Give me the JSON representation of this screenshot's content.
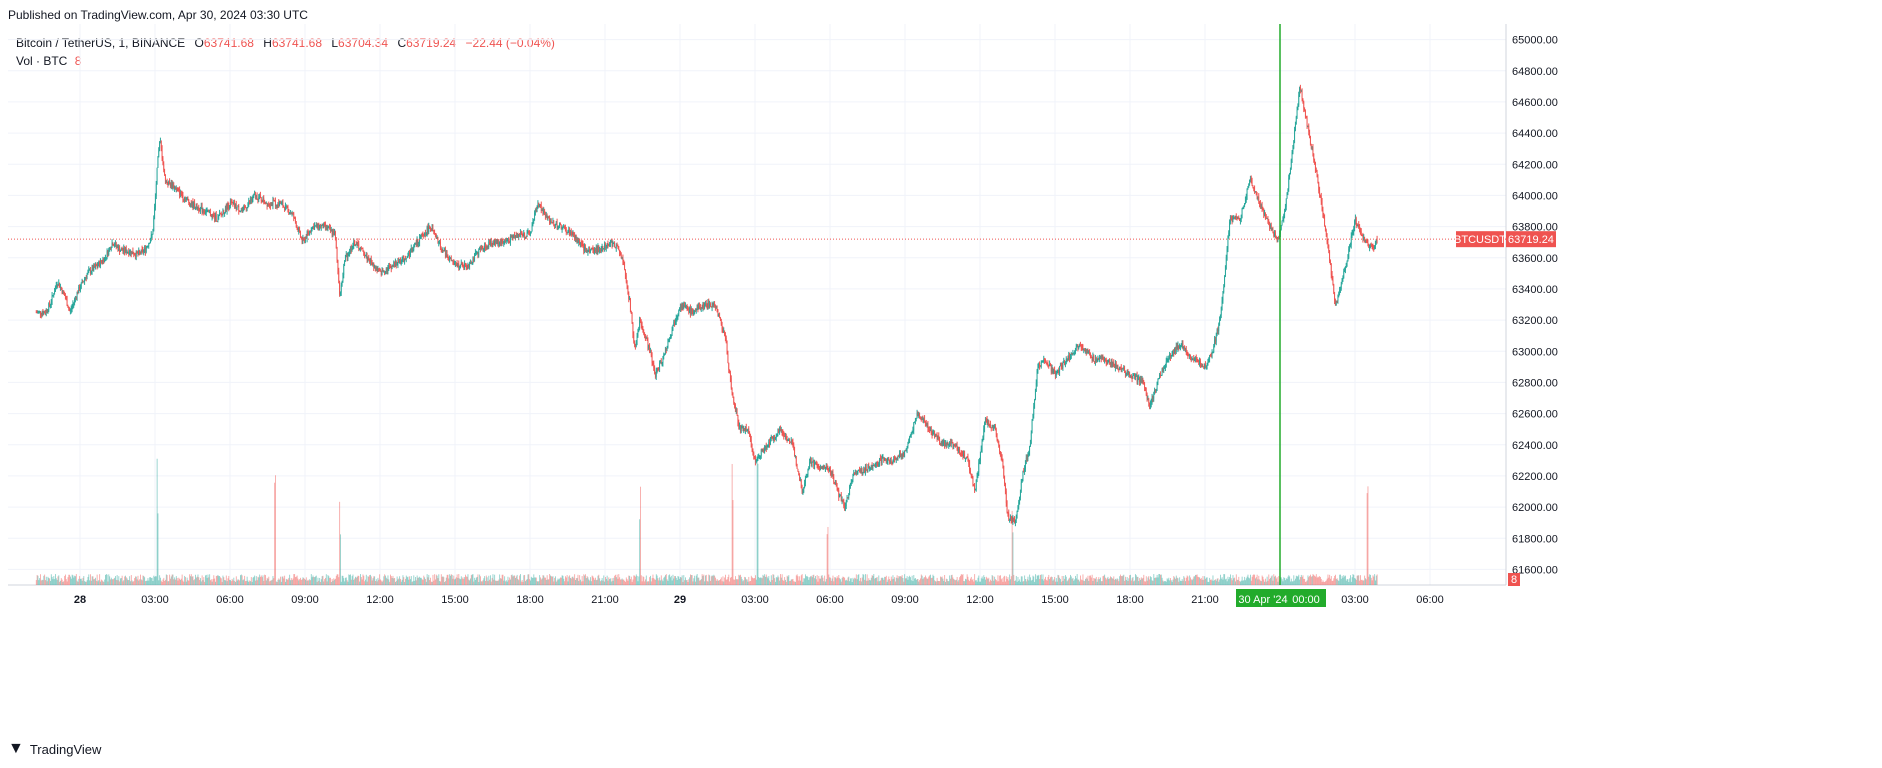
{
  "published": "Published on TradingView.com, Apr 30, 2024 03:30 UTC",
  "legend": {
    "symbol": "Bitcoin / TetherUS, 1, BINANCE",
    "open_label": "O",
    "open": "63741.68",
    "high_label": "H",
    "high": "63741.68",
    "low_label": "L",
    "low": "63704.34",
    "close_label": "C",
    "close": "63719.24",
    "change": "−22.44 (−0.04%)",
    "volume_label": "Vol · BTC",
    "volume_value": "8"
  },
  "price_tag": {
    "ticker": "BTCUSDT",
    "price": "63719.24"
  },
  "volume_tag": "8",
  "crosshair_date": {
    "date": "30 Apr '24",
    "time": "00:00"
  },
  "footer": {
    "brand": "TradingView"
  },
  "colors": {
    "up": "#26a69a",
    "down": "#ef5350",
    "crosshair": "#22ab2b",
    "grid": "#f0f3fa",
    "text": "#131722"
  },
  "chart_data": {
    "type": "candlestick",
    "x_tick_labels": [
      "28",
      "03:00",
      "06:00",
      "09:00",
      "12:00",
      "15:00",
      "18:00",
      "21:00",
      "29",
      "03:00",
      "06:00",
      "09:00",
      "12:00",
      "15:00",
      "18:00",
      "21:00",
      "00:00",
      "03:00",
      "06:00"
    ],
    "y_tick_labels": [
      "61600.00",
      "61800.00",
      "62000.00",
      "62200.00",
      "62400.00",
      "62600.00",
      "62800.00",
      "63000.00",
      "63200.00",
      "63400.00",
      "63600.00",
      "63800.00",
      "64000.00",
      "64200.00",
      "64400.00",
      "64600.00",
      "64800.00",
      "65000.00"
    ],
    "ylim": [
      61500,
      65100
    ],
    "last_price": 63719.24,
    "price_path_hours_from_28_00": [
      [
        -1.75,
        63250
      ],
      [
        -1.4,
        63250
      ],
      [
        -1.2,
        63300
      ],
      [
        -0.9,
        63450
      ],
      [
        -0.6,
        63350
      ],
      [
        -0.4,
        63250
      ],
      [
        -0.1,
        63380
      ],
      [
        0.3,
        63500
      ],
      [
        0.7,
        63550
      ],
      [
        1.0,
        63600
      ],
      [
        1.3,
        63700
      ],
      [
        1.6,
        63650
      ],
      [
        2.0,
        63640
      ],
      [
        2.3,
        63620
      ],
      [
        2.6,
        63650
      ],
      [
        2.9,
        63750
      ],
      [
        3.0,
        63950
      ],
      [
        3.1,
        64200
      ],
      [
        3.2,
        64360
      ],
      [
        3.4,
        64100
      ],
      [
        3.8,
        64050
      ],
      [
        4.4,
        63950
      ],
      [
        5.0,
        63900
      ],
      [
        5.5,
        63850
      ],
      [
        6.0,
        63950
      ],
      [
        6.5,
        63900
      ],
      [
        7.0,
        64000
      ],
      [
        7.5,
        63950
      ],
      [
        8.0,
        63950
      ],
      [
        8.5,
        63880
      ],
      [
        8.9,
        63700
      ],
      [
        9.3,
        63800
      ],
      [
        9.8,
        63800
      ],
      [
        10.2,
        63750
      ],
      [
        10.4,
        63350
      ],
      [
        10.6,
        63600
      ],
      [
        11.0,
        63700
      ],
      [
        11.5,
        63600
      ],
      [
        12.0,
        63500
      ],
      [
        12.5,
        63550
      ],
      [
        13.0,
        63600
      ],
      [
        13.5,
        63700
      ],
      [
        14.0,
        63800
      ],
      [
        14.5,
        63650
      ],
      [
        15.0,
        63550
      ],
      [
        15.5,
        63550
      ],
      [
        16.0,
        63650
      ],
      [
        16.5,
        63700
      ],
      [
        17.0,
        63700
      ],
      [
        17.5,
        63750
      ],
      [
        18.0,
        63750
      ],
      [
        18.3,
        63950
      ],
      [
        18.7,
        63850
      ],
      [
        19.2,
        63800
      ],
      [
        19.7,
        63750
      ],
      [
        20.2,
        63650
      ],
      [
        20.7,
        63650
      ],
      [
        21.2,
        63700
      ],
      [
        21.6,
        63650
      ],
      [
        21.8,
        63500
      ],
      [
        22.0,
        63300
      ],
      [
        22.2,
        63000
      ],
      [
        22.4,
        63200
      ],
      [
        22.8,
        63000
      ],
      [
        23.0,
        62850
      ],
      [
        23.3,
        62950
      ],
      [
        23.7,
        63150
      ],
      [
        24.0,
        63300
      ],
      [
        24.5,
        63250
      ],
      [
        25.0,
        63300
      ],
      [
        25.4,
        63300
      ],
      [
        25.8,
        63100
      ],
      [
        26.1,
        62700
      ],
      [
        26.4,
        62500
      ],
      [
        26.7,
        62500
      ],
      [
        27.0,
        62300
      ],
      [
        27.5,
        62400
      ],
      [
        28.0,
        62500
      ],
      [
        28.5,
        62400
      ],
      [
        28.9,
        62100
      ],
      [
        29.2,
        62300
      ],
      [
        29.6,
        62250
      ],
      [
        30.0,
        62250
      ],
      [
        30.3,
        62100
      ],
      [
        30.6,
        62000
      ],
      [
        30.9,
        62200
      ],
      [
        31.5,
        62250
      ],
      [
        32.0,
        62300
      ],
      [
        32.5,
        62300
      ],
      [
        33.0,
        62350
      ],
      [
        33.5,
        62600
      ],
      [
        34.0,
        62500
      ],
      [
        34.5,
        62400
      ],
      [
        35.0,
        62400
      ],
      [
        35.5,
        62300
      ],
      [
        35.8,
        62100
      ],
      [
        36.2,
        62550
      ],
      [
        36.6,
        62500
      ],
      [
        36.9,
        62300
      ],
      [
        37.1,
        61950
      ],
      [
        37.4,
        61900
      ],
      [
        37.7,
        62200
      ],
      [
        38.0,
        62400
      ],
      [
        38.3,
        62900
      ],
      [
        38.6,
        62950
      ],
      [
        39.0,
        62850
      ],
      [
        39.5,
        62950
      ],
      [
        40.0,
        63050
      ],
      [
        40.5,
        62950
      ],
      [
        41.0,
        62950
      ],
      [
        41.5,
        62900
      ],
      [
        42.0,
        62850
      ],
      [
        42.5,
        62800
      ],
      [
        42.8,
        62650
      ],
      [
        43.1,
        62800
      ],
      [
        43.5,
        62950
      ],
      [
        44.0,
        63050
      ],
      [
        44.5,
        62950
      ],
      [
        45.0,
        62900
      ],
      [
        45.3,
        63000
      ],
      [
        45.6,
        63200
      ],
      [
        45.8,
        63500
      ],
      [
        46.0,
        63850
      ],
      [
        46.4,
        63850
      ],
      [
        46.8,
        64100
      ],
      [
        47.2,
        63950
      ],
      [
        47.6,
        63800
      ],
      [
        47.9,
        63700
      ],
      [
        48.2,
        63900
      ],
      [
        48.5,
        64300
      ],
      [
        48.8,
        64700
      ],
      [
        49.1,
        64450
      ],
      [
        49.5,
        64100
      ],
      [
        49.9,
        63700
      ],
      [
        50.2,
        63300
      ],
      [
        50.4,
        63400
      ],
      [
        50.7,
        63600
      ],
      [
        51.0,
        63850
      ],
      [
        51.4,
        63700
      ],
      [
        51.7,
        63650
      ],
      [
        51.9,
        63719
      ]
    ],
    "volume_spikes_hours": [
      3.1,
      7.8,
      10.4,
      22.4,
      26.1,
      27.1,
      29.9,
      37.3,
      51.5
    ]
  }
}
